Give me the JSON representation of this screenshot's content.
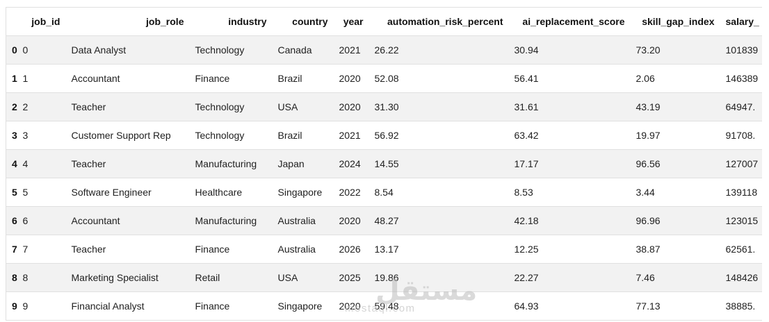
{
  "colors": {
    "stripe": "#f2f2f2",
    "border": "#e0e0e0",
    "text": "#212121",
    "header_text": "#111111",
    "watermark": "#c6c6c6"
  },
  "watermark": {
    "logo_text": "مستقل",
    "site_text": "mostaql.com"
  },
  "table": {
    "index_header": "",
    "columns": [
      "job_id",
      "job_role",
      "industry",
      "country",
      "year",
      "automation_risk_percent",
      "ai_replacement_score",
      "skill_gap_index",
      "salary_"
    ],
    "rows": [
      {
        "index": "0",
        "cells": [
          "0",
          "Data Analyst",
          "Technology",
          "Canada",
          "2021",
          "26.22",
          "30.94",
          "73.20",
          "101839"
        ]
      },
      {
        "index": "1",
        "cells": [
          "1",
          "Accountant",
          "Finance",
          "Brazil",
          "2020",
          "52.08",
          "56.41",
          "2.06",
          "146389"
        ]
      },
      {
        "index": "2",
        "cells": [
          "2",
          "Teacher",
          "Technology",
          "USA",
          "2020",
          "31.30",
          "31.61",
          "43.19",
          "64947."
        ]
      },
      {
        "index": "3",
        "cells": [
          "3",
          "Customer Support Rep",
          "Technology",
          "Brazil",
          "2021",
          "56.92",
          "63.42",
          "19.97",
          "91708."
        ]
      },
      {
        "index": "4",
        "cells": [
          "4",
          "Teacher",
          "Manufacturing",
          "Japan",
          "2024",
          "14.55",
          "17.17",
          "96.56",
          "127007"
        ]
      },
      {
        "index": "5",
        "cells": [
          "5",
          "Software Engineer",
          "Healthcare",
          "Singapore",
          "2022",
          "8.54",
          "8.53",
          "3.44",
          "139118"
        ]
      },
      {
        "index": "6",
        "cells": [
          "6",
          "Accountant",
          "Manufacturing",
          "Australia",
          "2020",
          "48.27",
          "42.18",
          "96.96",
          "123015"
        ]
      },
      {
        "index": "7",
        "cells": [
          "7",
          "Teacher",
          "Finance",
          "Australia",
          "2026",
          "13.17",
          "12.25",
          "38.87",
          "62561."
        ]
      },
      {
        "index": "8",
        "cells": [
          "8",
          "Marketing Specialist",
          "Retail",
          "USA",
          "2025",
          "19.86",
          "22.27",
          "7.46",
          "148426"
        ]
      },
      {
        "index": "9",
        "cells": [
          "9",
          "Financial Analyst",
          "Finance",
          "Singapore",
          "2020",
          "59.48",
          "64.93",
          "77.13",
          "38885."
        ]
      }
    ]
  }
}
